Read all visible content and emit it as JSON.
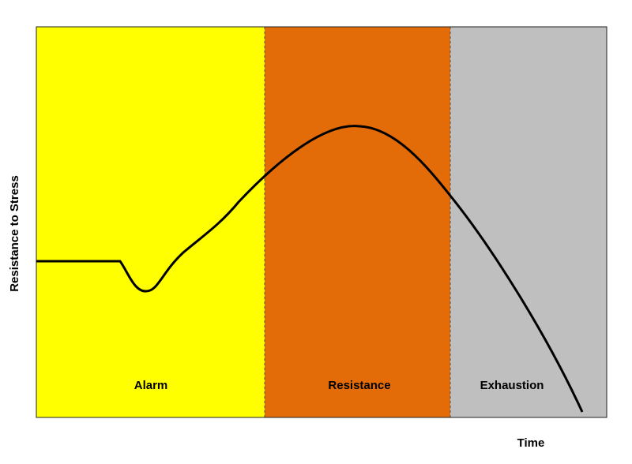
{
  "diagram": {
    "y_axis_label": "Resistance to Stress",
    "x_axis_label": "Time",
    "phases": [
      {
        "label": "Alarm"
      },
      {
        "label": "Resistance"
      },
      {
        "label": "Exhaustion"
      }
    ]
  }
}
